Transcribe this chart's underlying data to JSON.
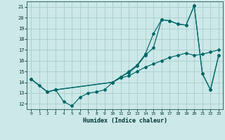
{
  "xlabel": "Humidex (Indice chaleur)",
  "bg_color": "#cce8e8",
  "grid_color": "#aacccc",
  "line_color": "#006666",
  "xlim": [
    -0.5,
    23.5
  ],
  "ylim": [
    11.5,
    21.5
  ],
  "yticks": [
    12,
    13,
    14,
    15,
    16,
    17,
    18,
    19,
    20,
    21
  ],
  "xticks": [
    0,
    1,
    2,
    3,
    4,
    5,
    6,
    7,
    8,
    9,
    10,
    11,
    12,
    13,
    14,
    15,
    16,
    17,
    18,
    19,
    20,
    21,
    22,
    23
  ],
  "line1_x": [
    0,
    1,
    2,
    3,
    4,
    5,
    6,
    7,
    8,
    9,
    10,
    11,
    12,
    13,
    14,
    15,
    16,
    17,
    18,
    19,
    20,
    21,
    22,
    23
  ],
  "line1_y": [
    14.3,
    13.7,
    13.1,
    13.3,
    12.2,
    11.8,
    12.6,
    13.0,
    13.1,
    13.3,
    14.0,
    14.5,
    14.9,
    15.5,
    16.5,
    17.2,
    19.8,
    19.7,
    19.4,
    19.3,
    21.1,
    14.8,
    13.3,
    16.5
  ],
  "line2_x": [
    0,
    2,
    3,
    10,
    11,
    12,
    13,
    14,
    15,
    16,
    17,
    18,
    19,
    20,
    21,
    22,
    23
  ],
  "line2_y": [
    14.3,
    13.1,
    13.3,
    14.0,
    14.4,
    14.6,
    15.0,
    15.4,
    15.7,
    16.0,
    16.3,
    16.5,
    16.7,
    16.5,
    16.6,
    16.8,
    17.0
  ],
  "line3_x": [
    0,
    2,
    3,
    10,
    11,
    12,
    13,
    14,
    15,
    16,
    17,
    18,
    19,
    20,
    21,
    22,
    23
  ],
  "line3_y": [
    14.3,
    13.1,
    13.3,
    14.0,
    14.5,
    15.0,
    15.6,
    16.6,
    18.5,
    19.8,
    19.7,
    19.4,
    19.3,
    21.1,
    14.8,
    13.3,
    16.5
  ]
}
